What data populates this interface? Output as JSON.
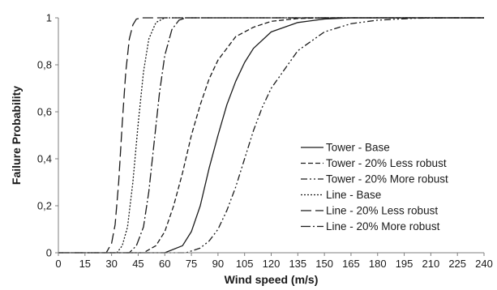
{
  "chart_data": {
    "type": "line",
    "title": "",
    "xlabel": "Wind speed (m/s)",
    "ylabel": "Failure Probability",
    "xlim": [
      0,
      240
    ],
    "ylim": [
      0,
      1
    ],
    "x_ticks": [
      "0",
      "15",
      "30",
      "45",
      "60",
      "75",
      "90",
      "105",
      "120",
      "135",
      "150",
      "165",
      "180",
      "195",
      "210",
      "225",
      "240"
    ],
    "y_ticks": [
      "0",
      "0,2",
      "0,4",
      "0,6",
      "0,8",
      "1"
    ],
    "grid": false,
    "legend_position": "bottom-right",
    "line_color": "#1a1a1a",
    "series": [
      {
        "name": "Tower - Base",
        "dash": "solid",
        "x": [
          60,
          70,
          75,
          80,
          85,
          90,
          95,
          100,
          105,
          110,
          120,
          135,
          150,
          165,
          180,
          200
        ],
        "y": [
          0,
          0.03,
          0.09,
          0.2,
          0.36,
          0.5,
          0.63,
          0.73,
          0.81,
          0.87,
          0.94,
          0.98,
          0.995,
          1,
          1,
          1
        ]
      },
      {
        "name": "Tower - 20% Less robust",
        "dash": "dash",
        "x": [
          48,
          55,
          60,
          65,
          70,
          75,
          80,
          85,
          90,
          100,
          110,
          120,
          135,
          150,
          165
        ],
        "y": [
          0,
          0.03,
          0.09,
          0.2,
          0.34,
          0.5,
          0.63,
          0.74,
          0.82,
          0.92,
          0.96,
          0.985,
          0.997,
          1,
          1
        ]
      },
      {
        "name": "Tower - 20% More robust",
        "dash": "dashdotdot",
        "x": [
          72,
          80,
          85,
          90,
          95,
          100,
          105,
          110,
          115,
          120,
          135,
          150,
          165,
          180,
          200,
          220
        ],
        "y": [
          0,
          0.02,
          0.05,
          0.1,
          0.18,
          0.28,
          0.4,
          0.52,
          0.62,
          0.7,
          0.86,
          0.94,
          0.975,
          0.99,
          0.998,
          1
        ]
      },
      {
        "name": "Line - Base",
        "dash": "dot",
        "x": [
          33,
          36,
          39,
          42,
          45,
          48,
          51,
          55,
          60,
          65
        ],
        "y": [
          0,
          0.03,
          0.11,
          0.3,
          0.55,
          0.77,
          0.91,
          0.98,
          1,
          1
        ]
      },
      {
        "name": "Line - 20% Less robust",
        "dash": "longdash",
        "x": [
          27,
          30,
          32,
          34,
          36,
          38,
          40,
          42,
          44,
          47,
          50
        ],
        "y": [
          0,
          0.04,
          0.12,
          0.3,
          0.55,
          0.77,
          0.91,
          0.97,
          0.995,
          1,
          1
        ]
      },
      {
        "name": "Line - 20% More robust",
        "dash": "dashdot",
        "x": [
          40,
          44,
          48,
          51,
          54,
          57,
          60,
          64,
          68,
          72,
          78
        ],
        "y": [
          0,
          0.03,
          0.11,
          0.26,
          0.47,
          0.68,
          0.84,
          0.95,
          0.99,
          1,
          1
        ]
      }
    ]
  }
}
